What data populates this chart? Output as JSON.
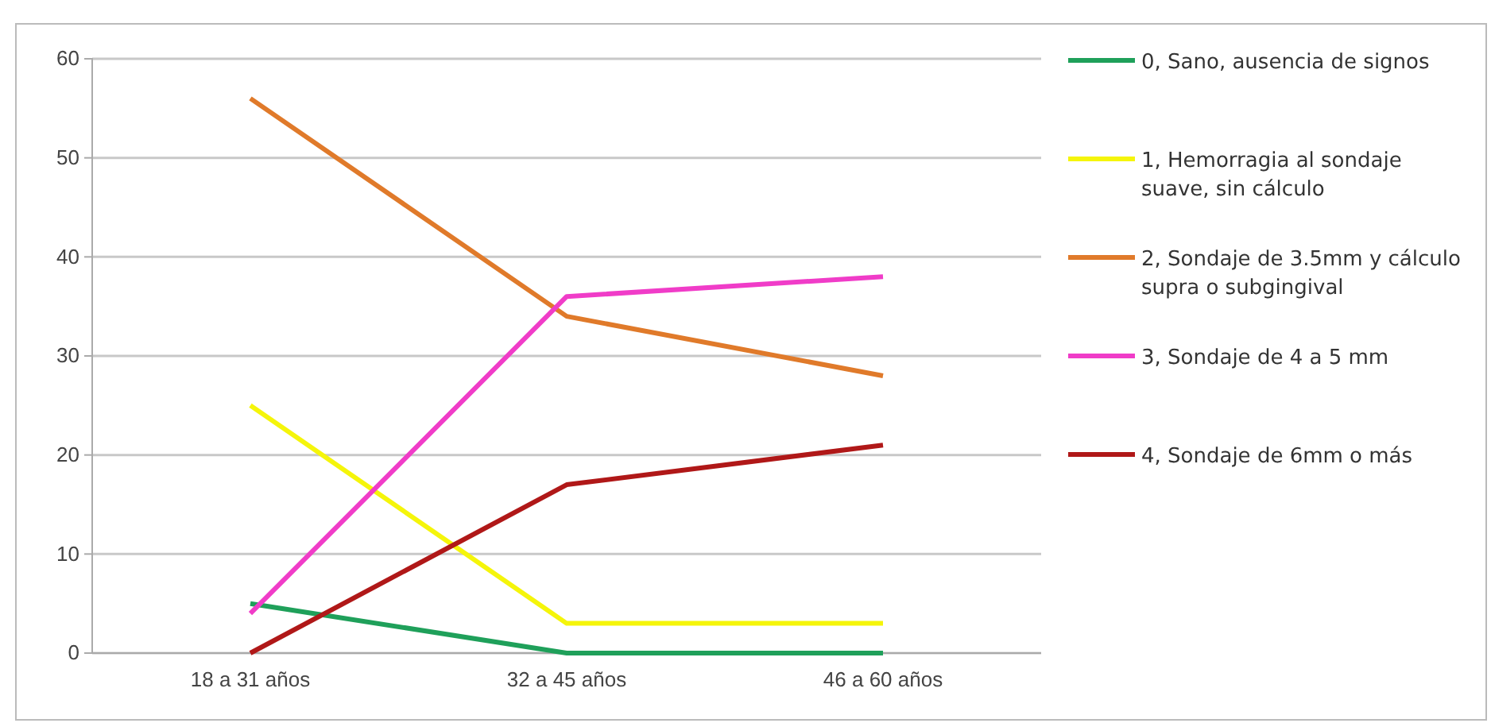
{
  "chart_data": {
    "type": "line",
    "categories": [
      "18 a 31 años",
      "32 a 45 años",
      "46 a 60 años"
    ],
    "series": [
      {
        "name": "0, Sano, ausencia de signos",
        "color": "#1fa05a",
        "values": [
          5,
          0,
          0
        ]
      },
      {
        "name": "1, Hemorragia al sondaje suave, sin cálculo",
        "color": "#f5f50a",
        "values": [
          25,
          3,
          3
        ]
      },
      {
        "name": "2, Sondaje de 3.5mm y cálculo supra o subgingival",
        "color": "#e07a2a",
        "values": [
          56,
          34,
          28
        ]
      },
      {
        "name": "3, Sondaje de 4 a 5 mm",
        "color": "#f03cc8",
        "values": [
          4,
          36,
          38
        ]
      },
      {
        "name": "4, Sondaje de 6mm o más",
        "color": "#b01818",
        "values": [
          0,
          17,
          21
        ]
      }
    ],
    "ylim": [
      0,
      60
    ],
    "yticks": [
      0,
      10,
      20,
      30,
      40,
      50,
      60
    ],
    "grid": "y",
    "legend": "right",
    "marker": "none",
    "line_style": "solid"
  }
}
